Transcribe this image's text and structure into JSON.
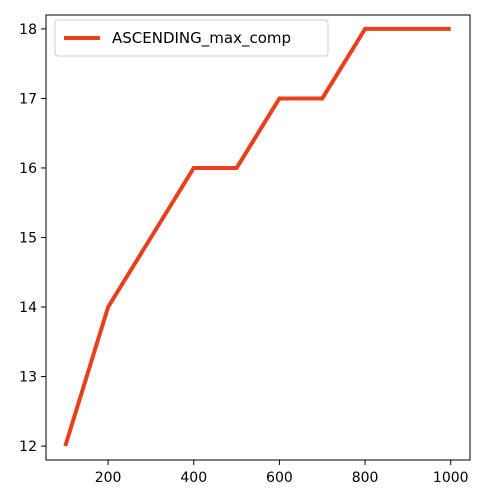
{
  "chart_data": {
    "type": "line",
    "title": "",
    "xlabel": "",
    "ylabel": "",
    "xlim": [
      55,
      1045
    ],
    "ylim": [
      11.8,
      18.2
    ],
    "xticks": [
      200,
      400,
      600,
      800,
      1000
    ],
    "yticks": [
      12,
      13,
      14,
      15,
      16,
      17,
      18
    ],
    "grid": false,
    "legend_position": "top-left",
    "series": [
      {
        "name": "ASCENDING_max_comp",
        "color": "#e8401c",
        "x": [
          100,
          200,
          300,
          400,
          500,
          600,
          700,
          800,
          900,
          1000
        ],
        "y": [
          12,
          14,
          15,
          16,
          16,
          17,
          17,
          18,
          18,
          18
        ]
      }
    ]
  }
}
